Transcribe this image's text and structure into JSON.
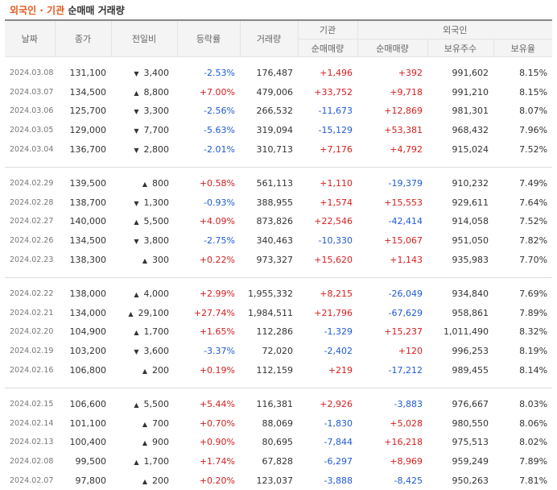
{
  "title": {
    "highlight": "외국인 · 기관",
    "rest": "순매매 거래량"
  },
  "columns": {
    "date": "날짜",
    "close": "종가",
    "change": "전일비",
    "rate": "등락률",
    "volume": "거래량",
    "inst_group": "기관",
    "foreign_group": "외국인",
    "inst_net": "순매매량",
    "foreign_net": "순매매량",
    "holdings": "보유주수",
    "ratio": "보유율"
  },
  "colors": {
    "up": "#d41f1f",
    "down": "#1f5bd4",
    "title_accent": "#e25a1c"
  },
  "icons": {
    "up": "up-triangle-icon",
    "down": "down-triangle-icon"
  },
  "groups": [
    [
      {
        "date": "2024.03.08",
        "close": "131,100",
        "dir": "down",
        "change": "3,400",
        "rate": "-2.53%",
        "volume": "176,487",
        "inst": "+1,496",
        "foreign": "+392",
        "holdings": "991,602",
        "ratio": "8.15%"
      },
      {
        "date": "2024.03.07",
        "close": "134,500",
        "dir": "up",
        "change": "8,800",
        "rate": "+7.00%",
        "volume": "479,006",
        "inst": "+33,752",
        "foreign": "+9,718",
        "holdings": "991,210",
        "ratio": "8.15%"
      },
      {
        "date": "2024.03.06",
        "close": "125,700",
        "dir": "down",
        "change": "3,300",
        "rate": "-2.56%",
        "volume": "266,532",
        "inst": "-11,673",
        "foreign": "+12,869",
        "holdings": "981,301",
        "ratio": "8.07%"
      },
      {
        "date": "2024.03.05",
        "close": "129,000",
        "dir": "down",
        "change": "7,700",
        "rate": "-5.63%",
        "volume": "319,094",
        "inst": "-15,129",
        "foreign": "+53,381",
        "holdings": "968,432",
        "ratio": "7.96%"
      },
      {
        "date": "2024.03.04",
        "close": "136,700",
        "dir": "down",
        "change": "2,800",
        "rate": "-2.01%",
        "volume": "310,713",
        "inst": "+7,176",
        "foreign": "+4,792",
        "holdings": "915,024",
        "ratio": "7.52%"
      }
    ],
    [
      {
        "date": "2024.02.29",
        "close": "139,500",
        "dir": "up",
        "change": "800",
        "rate": "+0.58%",
        "volume": "561,113",
        "inst": "+1,110",
        "foreign": "-19,379",
        "holdings": "910,232",
        "ratio": "7.49%"
      },
      {
        "date": "2024.02.28",
        "close": "138,700",
        "dir": "down",
        "change": "1,300",
        "rate": "-0.93%",
        "volume": "388,955",
        "inst": "+1,574",
        "foreign": "+15,553",
        "holdings": "929,611",
        "ratio": "7.64%"
      },
      {
        "date": "2024.02.27",
        "close": "140,000",
        "dir": "up",
        "change": "5,500",
        "rate": "+4.09%",
        "volume": "873,826",
        "inst": "+22,546",
        "foreign": "-42,414",
        "holdings": "914,058",
        "ratio": "7.52%"
      },
      {
        "date": "2024.02.26",
        "close": "134,500",
        "dir": "down",
        "change": "3,800",
        "rate": "-2.75%",
        "volume": "340,463",
        "inst": "-10,330",
        "foreign": "+15,067",
        "holdings": "951,050",
        "ratio": "7.82%"
      },
      {
        "date": "2024.02.23",
        "close": "138,300",
        "dir": "up",
        "change": "300",
        "rate": "+0.22%",
        "volume": "973,327",
        "inst": "+15,620",
        "foreign": "+1,143",
        "holdings": "935,983",
        "ratio": "7.70%"
      }
    ],
    [
      {
        "date": "2024.02.22",
        "close": "138,000",
        "dir": "up",
        "change": "4,000",
        "rate": "+2.99%",
        "volume": "1,955,332",
        "inst": "+8,215",
        "foreign": "-26,049",
        "holdings": "934,840",
        "ratio": "7.69%"
      },
      {
        "date": "2024.02.21",
        "close": "134,000",
        "dir": "up",
        "change": "29,100",
        "rate": "+27.74%",
        "volume": "1,984,511",
        "inst": "+21,796",
        "foreign": "-67,629",
        "holdings": "958,861",
        "ratio": "7.89%"
      },
      {
        "date": "2024.02.20",
        "close": "104,900",
        "dir": "up",
        "change": "1,700",
        "rate": "+1.65%",
        "volume": "112,286",
        "inst": "-1,329",
        "foreign": "+15,237",
        "holdings": "1,011,490",
        "ratio": "8.32%"
      },
      {
        "date": "2024.02.19",
        "close": "103,200",
        "dir": "down",
        "change": "3,600",
        "rate": "-3.37%",
        "volume": "72,020",
        "inst": "-2,402",
        "foreign": "+120",
        "holdings": "996,253",
        "ratio": "8.19%"
      },
      {
        "date": "2024.02.16",
        "close": "106,800",
        "dir": "up",
        "change": "200",
        "rate": "+0.19%",
        "volume": "112,159",
        "inst": "+219",
        "foreign": "-17,212",
        "holdings": "989,455",
        "ratio": "8.14%"
      }
    ],
    [
      {
        "date": "2024.02.15",
        "close": "106,600",
        "dir": "up",
        "change": "5,500",
        "rate": "+5.44%",
        "volume": "116,381",
        "inst": "+2,926",
        "foreign": "-3,883",
        "holdings": "976,667",
        "ratio": "8.03%"
      },
      {
        "date": "2024.02.14",
        "close": "101,100",
        "dir": "up",
        "change": "700",
        "rate": "+0.70%",
        "volume": "88,069",
        "inst": "-1,830",
        "foreign": "+5,028",
        "holdings": "980,550",
        "ratio": "8.06%"
      },
      {
        "date": "2024.02.13",
        "close": "100,400",
        "dir": "up",
        "change": "900",
        "rate": "+0.90%",
        "volume": "80,695",
        "inst": "-7,844",
        "foreign": "+16,218",
        "holdings": "975,513",
        "ratio": "8.02%"
      },
      {
        "date": "2024.02.08",
        "close": "99,500",
        "dir": "up",
        "change": "1,700",
        "rate": "+1.74%",
        "volume": "67,828",
        "inst": "-6,297",
        "foreign": "+8,969",
        "holdings": "959,249",
        "ratio": "7.89%"
      },
      {
        "date": "2024.02.07",
        "close": "97,800",
        "dir": "up",
        "change": "200",
        "rate": "+0.20%",
        "volume": "123,037",
        "inst": "-3,888",
        "foreign": "-8,425",
        "holdings": "950,263",
        "ratio": "7.81%"
      }
    ]
  ]
}
